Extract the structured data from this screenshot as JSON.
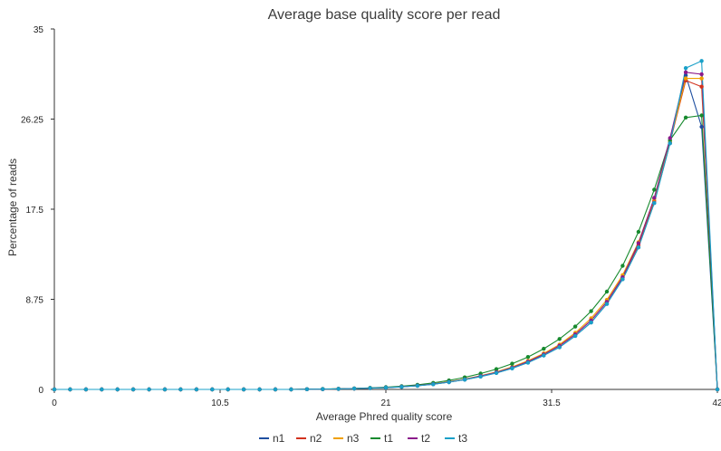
{
  "chart_data": {
    "type": "line",
    "title": "Average base quality score per read",
    "xlabel": "Average Phred quality score",
    "ylabel": "Percentage of reads",
    "xlim": [
      0,
      42
    ],
    "ylim": [
      0,
      35
    ],
    "xticks": [
      "0",
      "10.5",
      "21",
      "31.5",
      "42"
    ],
    "yticks": [
      "0",
      "8.75",
      "17.5",
      "26.25",
      "35"
    ],
    "x": [
      0,
      1,
      2,
      3,
      4,
      5,
      6,
      7,
      8,
      9,
      10,
      11,
      12,
      13,
      14,
      15,
      16,
      17,
      18,
      19,
      20,
      21,
      22,
      23,
      24,
      25,
      26,
      27,
      28,
      29,
      30,
      31,
      32,
      33,
      34,
      35,
      36,
      37,
      38,
      39,
      40,
      41,
      42
    ],
    "series": [
      {
        "name": "n1",
        "color": "#1f4fa0",
        "values": [
          0,
          0,
          0,
          0,
          0,
          0,
          0,
          0,
          0,
          0,
          0,
          0,
          0,
          0,
          0,
          0,
          0.02,
          0.03,
          0.05,
          0.08,
          0.12,
          0.17,
          0.25,
          0.35,
          0.5,
          0.7,
          0.95,
          1.25,
          1.6,
          2.05,
          2.6,
          3.3,
          4.1,
          5.2,
          6.5,
          8.3,
          10.7,
          13.8,
          18.1,
          23.9,
          30.5,
          25.5,
          0
        ]
      },
      {
        "name": "n2",
        "color": "#d2321e",
        "values": [
          0,
          0,
          0,
          0,
          0,
          0,
          0,
          0,
          0,
          0,
          0,
          0,
          0,
          0,
          0,
          0,
          0.02,
          0.03,
          0.05,
          0.08,
          0.12,
          0.18,
          0.26,
          0.37,
          0.52,
          0.72,
          0.98,
          1.3,
          1.65,
          2.12,
          2.7,
          3.4,
          4.25,
          5.35,
          6.7,
          8.5,
          10.9,
          14.0,
          18.3,
          24.0,
          30.0,
          29.4,
          0
        ]
      },
      {
        "name": "n3",
        "color": "#f0a000",
        "values": [
          0,
          0,
          0,
          0,
          0,
          0,
          0,
          0,
          0,
          0,
          0,
          0,
          0,
          0,
          0,
          0,
          0.02,
          0.03,
          0.05,
          0.08,
          0.12,
          0.18,
          0.27,
          0.38,
          0.53,
          0.74,
          1.0,
          1.33,
          1.7,
          2.18,
          2.78,
          3.5,
          4.35,
          5.5,
          6.9,
          8.7,
          11.1,
          14.3,
          18.5,
          24.1,
          30.2,
          30.2,
          0
        ]
      },
      {
        "name": "t1",
        "color": "#178a2e",
        "values": [
          0,
          0,
          0,
          0,
          0,
          0,
          0,
          0,
          0,
          0,
          0,
          0,
          0,
          0,
          0,
          0,
          0.03,
          0.04,
          0.06,
          0.1,
          0.15,
          0.22,
          0.32,
          0.45,
          0.63,
          0.87,
          1.17,
          1.54,
          1.97,
          2.5,
          3.15,
          3.95,
          4.9,
          6.1,
          7.6,
          9.5,
          12.0,
          15.3,
          19.4,
          24.2,
          26.4,
          26.6,
          0
        ]
      },
      {
        "name": "t2",
        "color": "#8b1a8b",
        "values": [
          0,
          0,
          0,
          0,
          0,
          0,
          0,
          0,
          0,
          0,
          0,
          0,
          0,
          0,
          0,
          0,
          0.02,
          0.03,
          0.05,
          0.08,
          0.12,
          0.18,
          0.26,
          0.37,
          0.52,
          0.72,
          0.98,
          1.3,
          1.66,
          2.12,
          2.7,
          3.4,
          4.25,
          5.35,
          6.7,
          8.5,
          10.9,
          14.2,
          18.6,
          24.4,
          30.8,
          30.6,
          0
        ]
      },
      {
        "name": "t3",
        "color": "#19a0c8",
        "values": [
          0,
          0,
          0,
          0,
          0,
          0,
          0,
          0,
          0,
          0,
          0,
          0,
          0,
          0,
          0,
          0,
          0.02,
          0.03,
          0.05,
          0.08,
          0.12,
          0.17,
          0.25,
          0.35,
          0.5,
          0.7,
          0.95,
          1.25,
          1.6,
          2.05,
          2.6,
          3.3,
          4.1,
          5.2,
          6.5,
          8.3,
          10.7,
          13.8,
          18.1,
          23.9,
          31.2,
          31.9,
          0
        ]
      }
    ],
    "legend": "bottom"
  }
}
